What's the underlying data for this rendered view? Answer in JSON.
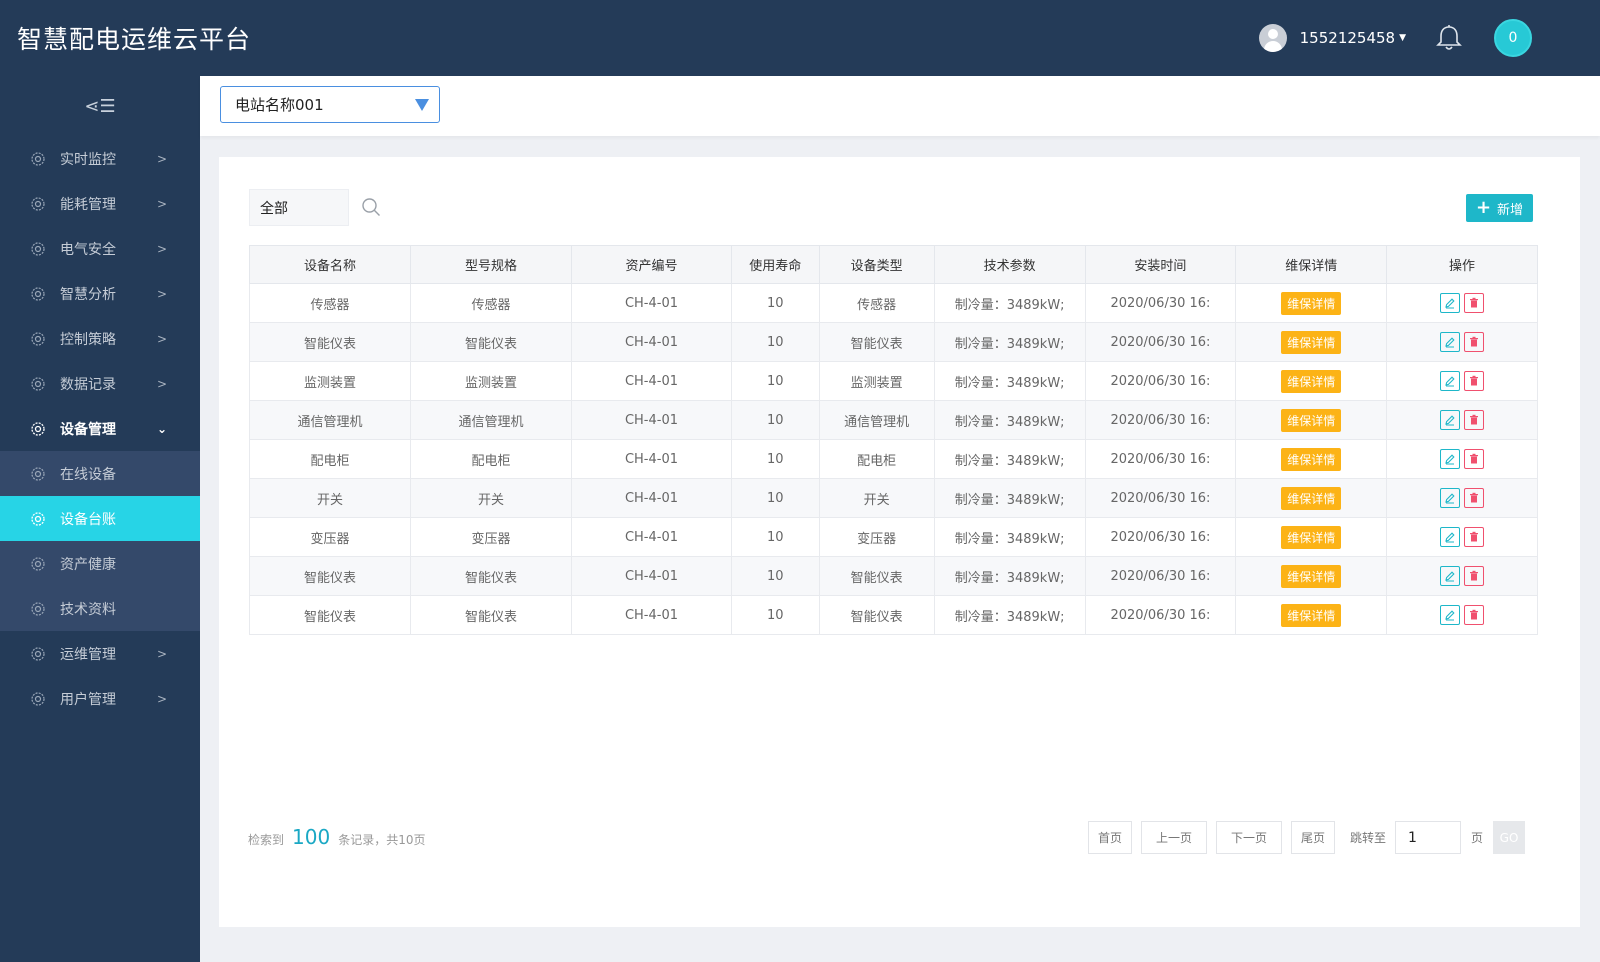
{
  "header": {
    "app_title": "智慧配电运维云平台",
    "username": "1552125458",
    "notification_count": "0"
  },
  "sidebar": {
    "items": [
      {
        "label": "实时监控"
      },
      {
        "label": "能耗管理"
      },
      {
        "label": "电气安全"
      },
      {
        "label": "智慧分析"
      },
      {
        "label": "控制策略"
      },
      {
        "label": "数据记录"
      },
      {
        "label": "设备管理"
      },
      {
        "label": "运维管理"
      },
      {
        "label": "用户管理"
      }
    ],
    "submenu": [
      {
        "label": "在线设备"
      },
      {
        "label": "设备台账"
      },
      {
        "label": "资产健康"
      },
      {
        "label": "技术资料"
      }
    ]
  },
  "topbar": {
    "station": "电站名称001"
  },
  "toolbar": {
    "filter_value": "全部",
    "add_label": "新增"
  },
  "table": {
    "headers": [
      "设备名称",
      "型号规格",
      "资产编号",
      "使用寿命",
      "设备类型",
      "技术参数",
      "安装时间",
      "维保详情",
      "操作"
    ],
    "detail_label": "维保详情",
    "rows": [
      [
        "传感器",
        "传感器",
        "CH-4-01",
        "10",
        "传感器",
        "制冷量：3489kW;",
        "2020/06/30 16:"
      ],
      [
        "智能仪表",
        "智能仪表",
        "CH-4-01",
        "10",
        "智能仪表",
        "制冷量：3489kW;",
        "2020/06/30 16:"
      ],
      [
        "监测装置",
        "监测装置",
        "CH-4-01",
        "10",
        "监测装置",
        "制冷量：3489kW;",
        "2020/06/30 16:"
      ],
      [
        "通信管理机",
        "通信管理机",
        "CH-4-01",
        "10",
        "通信管理机",
        "制冷量：3489kW;",
        "2020/06/30 16:"
      ],
      [
        "配电柜",
        "配电柜",
        "CH-4-01",
        "10",
        "配电柜",
        "制冷量：3489kW;",
        "2020/06/30 16:"
      ],
      [
        "开关",
        "开关",
        "CH-4-01",
        "10",
        "开关",
        "制冷量：3489kW;",
        "2020/06/30 16:"
      ],
      [
        "变压器",
        "变压器",
        "CH-4-01",
        "10",
        "变压器",
        "制冷量：3489kW;",
        "2020/06/30 16:"
      ],
      [
        "智能仪表",
        "智能仪表",
        "CH-4-01",
        "10",
        "智能仪表",
        "制冷量：3489kW;",
        "2020/06/30 16:"
      ],
      [
        "智能仪表",
        "智能仪表",
        "CH-4-01",
        "10",
        "智能仪表",
        "制冷量：3489kW;",
        "2020/06/30 16:"
      ]
    ]
  },
  "pagination": {
    "prefix": "检索到",
    "total": "100",
    "suffix": "条记录，共10页",
    "first": "首页",
    "prev": "上一页",
    "next": "下一页",
    "last": "尾页",
    "jump_label": "跳转至",
    "page_value": "1",
    "page_suffix": "页",
    "go": "GO"
  },
  "colors": {
    "header_bg": "#243b58",
    "accent": "#27d4e6",
    "detail_button": "#fcb316",
    "delete": "#f0506e"
  }
}
